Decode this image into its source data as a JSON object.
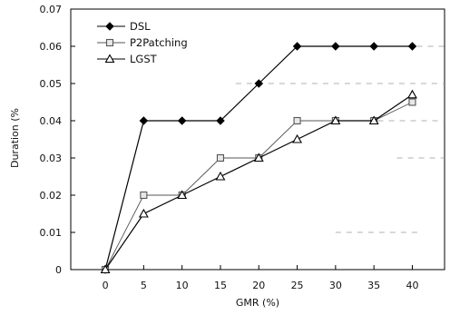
{
  "chart_data": {
    "type": "line",
    "title": "",
    "xlabel": "GMR (%)",
    "ylabel": "Duration (%",
    "x": [
      0,
      5,
      10,
      15,
      20,
      25,
      30,
      35,
      40
    ],
    "xticks": [
      "0",
      "5",
      "10",
      "15",
      "20",
      "25",
      "30",
      "35",
      "40"
    ],
    "yticks": [
      "0",
      "0.01",
      "0.02",
      "0.03",
      "0.04",
      "0.05",
      "0.06",
      "0.07"
    ],
    "xlim": [
      -4.5,
      44.2
    ],
    "ylim": [
      0,
      0.07
    ],
    "grid": "sparse dashed horizontal fragments",
    "legend_position": "top-left",
    "series": [
      {
        "name": "DSL",
        "marker": "filled-diamond",
        "color": "#000000",
        "values": [
          0,
          0.04,
          0.04,
          0.04,
          0.05,
          0.06,
          0.06,
          0.06,
          0.06
        ]
      },
      {
        "name": "P2Patching",
        "marker": "open-square",
        "color": "#555555",
        "values": [
          0,
          0.02,
          0.02,
          0.03,
          0.03,
          0.04,
          0.04,
          0.04,
          0.045
        ]
      },
      {
        "name": "LGST",
        "marker": "open-triangle",
        "color": "#000000",
        "values": [
          0,
          0.015,
          0.02,
          0.025,
          0.03,
          0.035,
          0.04,
          0.04,
          0.047
        ]
      }
    ]
  }
}
